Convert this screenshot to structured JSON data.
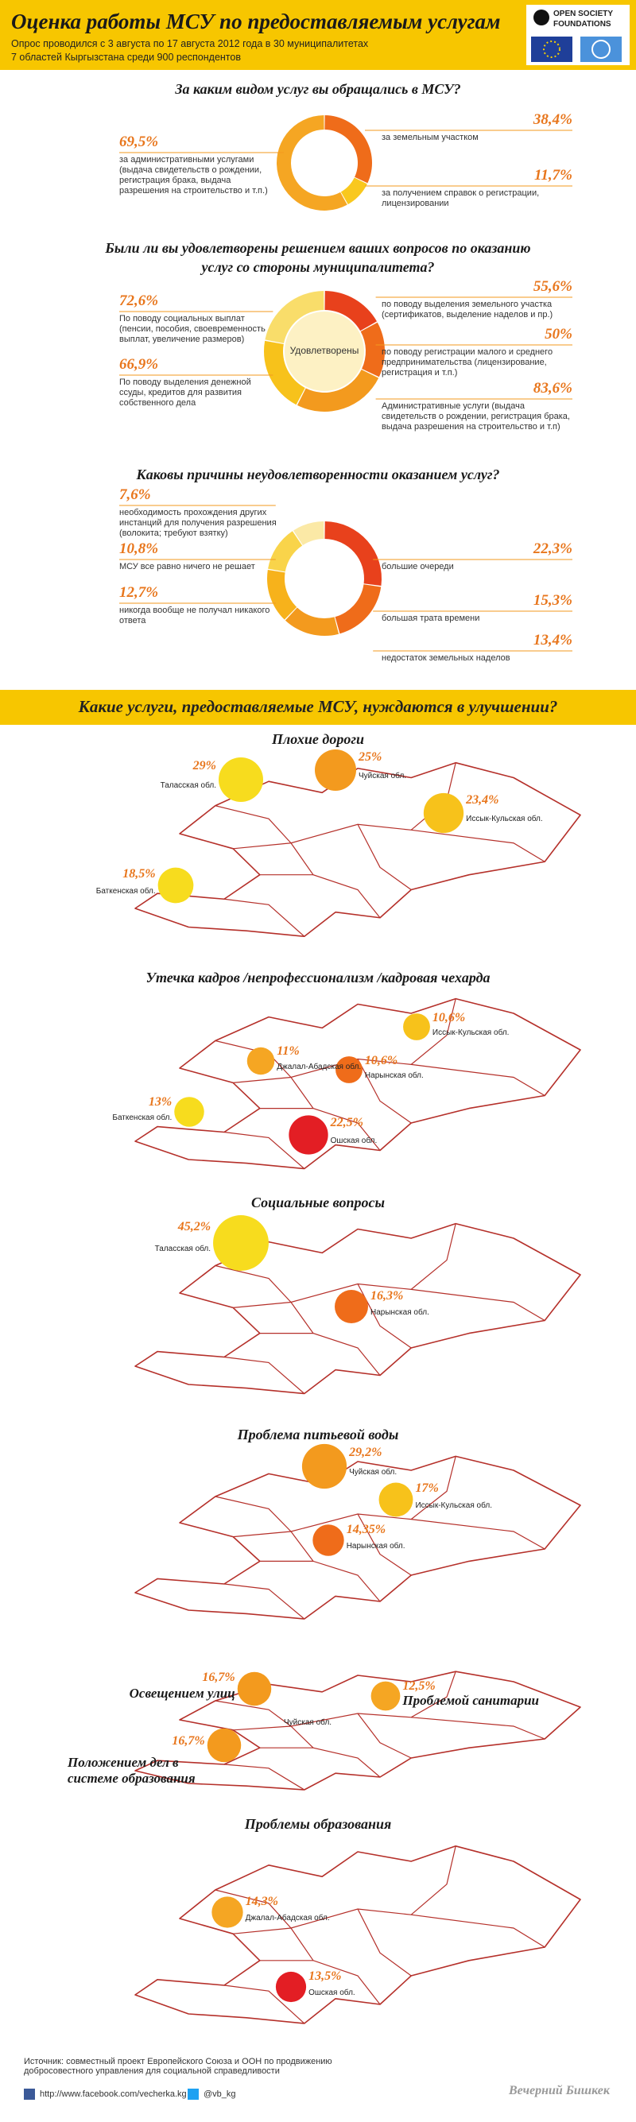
{
  "header": {
    "title": "Оценка работы МСУ  по предоставляемым услугам",
    "subtitle": [
      "Опрос проводился с 3 августа по 17 августа 2012 года в 30 муниципалитетах",
      "7 областей  Кыргызстана среди 900 респондентов"
    ],
    "logo": [
      "OPEN SOCIETY",
      "FOUNDATIONS"
    ]
  },
  "surveys": [
    {
      "question": "За каким видом услуг вы обращались в МСУ?",
      "segments": [
        {
          "value": 38.4,
          "value_label": "38,4%",
          "label": "за земельным участком",
          "color": "#ef6c1a"
        },
        {
          "value": 11.7,
          "value_label": "11,7%",
          "label": "за получением справок о регистрации, лицензировании",
          "color": "#f9c81e"
        },
        {
          "value": 69.5,
          "value_label": "69,5%",
          "label": "за административными услугами (выдача свидетельств о рождении, регистрация брака, выдача разрешения на строительство и т.п.)",
          "color": "#f5a623"
        }
      ]
    },
    {
      "question": "Были ли вы удовлетворены решением ваших вопросов по оказанию услуг со стороны муниципалитета?",
      "center": "Удовлетворены",
      "segments": [
        {
          "value": 55.6,
          "value_label": "55,6%",
          "label": "по поводу выделения земельного участка (сертификатов, выделение наделов и пр.)",
          "color": "#e8411c"
        },
        {
          "value": 50,
          "value_label": "50%",
          "label": "по поводу регистрации малого и среднего предпринимательства (лицензирование, регистрация и т.п.)",
          "color": "#ef6c1a"
        },
        {
          "value": 83.6,
          "value_label": "83,6%",
          "label": "Административные услуги (выдача свидетельств о рождении, регистрация брака, выдача разрешения на строительство и т.п)",
          "color": "#f39a1e"
        },
        {
          "value": 66.9,
          "value_label": "66,9%",
          "label": "По поводу выделения денежной ссуды, кредитов для развития собственного дела",
          "color": "#f7c21b"
        },
        {
          "value": 72.6,
          "value_label": "72,6%",
          "label": "По поводу социальных выплат (пенсии, пособия, своевременность выплат, увеличение размеров)",
          "color": "#f9dd6a"
        }
      ]
    },
    {
      "question": "Каковы причины неудовлетворенности оказанием услуг?",
      "segments": [
        {
          "value": 22.3,
          "value_label": "22,3%",
          "label": "большие очереди",
          "color": "#e8411c"
        },
        {
          "value": 15.3,
          "value_label": "15,3%",
          "label": "большая трата времени",
          "color": "#ef6c1a"
        },
        {
          "value": 13.4,
          "value_label": "13,4%",
          "label": "недостаток земельных наделов",
          "color": "#f39a1e"
        },
        {
          "value": 12.7,
          "value_label": "12,7%",
          "label": "никогда вообще не получал никакого ответа",
          "color": "#f7b21b"
        },
        {
          "value": 10.8,
          "value_label": "10,8%",
          "label": "МСУ все равно ничего не решает",
          "color": "#f9d44a"
        },
        {
          "value": 7.6,
          "value_label": "7,6%",
          "label": "необходимость прохождения других инстанций для получения разрешения (волокита; требуют взятку)",
          "color": "#fbe9a6"
        }
      ]
    }
  ],
  "improvement_heading": "Какие  услуги, предоставляемые МСУ, нуждаются в улучшении?",
  "maps": [
    {
      "title": "Плохие дороги",
      "bubbles": [
        {
          "value": 29,
          "value_label": "29%",
          "region": "Таласская обл.",
          "color": "#f7dc1e"
        },
        {
          "value": 25,
          "value_label": "25%",
          "region": "Чуйская обл.",
          "color": "#f39a1e"
        },
        {
          "value": 23.4,
          "value_label": "23,4%",
          "region": "Иссык-Кульская обл.",
          "color": "#f7c21b"
        },
        {
          "value": 18.5,
          "value_label": "18,5%",
          "region": "Баткенская обл.",
          "color": "#f7dc1e"
        }
      ]
    },
    {
      "title": "Утечка кадров /непрофессионализм /кадровая чехарда",
      "bubbles": [
        {
          "value": 10.6,
          "value_label": "10,6%",
          "region": "Иссык-Кульская обл.",
          "color": "#f7c21b"
        },
        {
          "value": 11,
          "value_label": "11%",
          "region": "Джалал-Абадская обл.",
          "color": "#f5a623"
        },
        {
          "value": 10.6,
          "value_label": "10,6%",
          "region": "Нарынская обл.",
          "color": "#ef6c1a"
        },
        {
          "value": 13,
          "value_label": "13%",
          "region": "Баткенская обл.",
          "color": "#f7dc1e"
        },
        {
          "value": 22.5,
          "value_label": "22,5%",
          "region": "Ошская обл.",
          "color": "#e31e24"
        }
      ]
    },
    {
      "title": "Социальные вопросы",
      "bubbles": [
        {
          "value": 45.2,
          "value_label": "45,2%",
          "region": "Таласская обл.",
          "color": "#f7dc1e"
        },
        {
          "value": 16.3,
          "value_label": "16,3%",
          "region": "Нарынская обл.",
          "color": "#ef6c1a"
        }
      ]
    },
    {
      "title": "Проблема питьевой воды",
      "bubbles": [
        {
          "value": 29.2,
          "value_label": "29,2%",
          "region": "Чуйская обл.",
          "color": "#f39a1e"
        },
        {
          "value": 17,
          "value_label": "17%",
          "region": "Иссык-Кульская обл.",
          "color": "#f7c21b"
        },
        {
          "value": 14.35,
          "value_label": "14,35%",
          "region": "Нарынская обл.",
          "color": "#ef6c1a"
        }
      ]
    },
    {
      "note": "Чуйская обл.",
      "bubbles": [
        {
          "value": 16.7,
          "value_label": "16,7%",
          "label": "Освещением улиц",
          "color": "#f39a1e"
        },
        {
          "value": 12.5,
          "value_label": "12,5%",
          "label": "Проблемой санитарии",
          "color": "#f5a623"
        },
        {
          "value": 16.7,
          "value_label": "16,7%",
          "label": "Положением дел в системе образования",
          "color": "#f39a1e"
        }
      ]
    },
    {
      "title": "Проблемы образования",
      "bubbles": [
        {
          "value": 14.3,
          "value_label": "14,3%",
          "region": "Джалал-Абадская обл.",
          "color": "#f5a623"
        },
        {
          "value": 13.5,
          "value_label": "13,5%",
          "region": "Ошская обл.",
          "color": "#e31e24"
        }
      ]
    }
  ],
  "footer": {
    "source": "Источник:  совместный проект Европейского Союза и ООН по продвижению добросовестного управления для социальной справедливости",
    "facebook": "http://www.facebook.com/vecherka.kg",
    "twitter": "@vb_kg",
    "brand": "Вечерний Бишкек"
  }
}
